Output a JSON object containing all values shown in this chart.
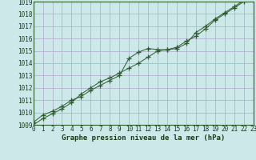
{
  "title": "Graphe pression niveau de la mer (hPa)",
  "bg_color": "#cce8e8",
  "plot_bg_color": "#cce8e8",
  "grid_color": "#b0a8c8",
  "line_color": "#2d5a2d",
  "marker_color": "#2d5a2d",
  "x_values": [
    0,
    1,
    2,
    3,
    4,
    5,
    6,
    7,
    8,
    9,
    10,
    11,
    12,
    13,
    14,
    15,
    16,
    17,
    18,
    19,
    20,
    21,
    22,
    23
  ],
  "y_values1": [
    1009.2,
    1009.8,
    1010.1,
    1010.5,
    1011.0,
    1011.3,
    1011.8,
    1012.2,
    1012.6,
    1013.0,
    1014.4,
    1014.9,
    1015.2,
    1015.1,
    1015.1,
    1015.3,
    1015.8,
    1016.2,
    1016.8,
    1017.5,
    1018.0,
    1018.5,
    1019.0,
    1019.3
  ],
  "y_values2": [
    1009.0,
    1009.5,
    1009.9,
    1010.3,
    1010.8,
    1011.5,
    1012.0,
    1012.5,
    1012.8,
    1013.2,
    1013.6,
    1014.0,
    1014.5,
    1015.0,
    1015.1,
    1015.2,
    1015.6,
    1016.5,
    1017.0,
    1017.6,
    1018.1,
    1018.6,
    1019.1,
    1019.4
  ],
  "ylim": [
    1009,
    1019
  ],
  "xlim": [
    0,
    23
  ],
  "yticks": [
    1009,
    1010,
    1011,
    1012,
    1013,
    1014,
    1015,
    1016,
    1017,
    1018,
    1019
  ],
  "xticks": [
    0,
    1,
    2,
    3,
    4,
    5,
    6,
    7,
    8,
    9,
    10,
    11,
    12,
    13,
    14,
    15,
    16,
    17,
    18,
    19,
    20,
    21,
    22,
    23
  ],
  "title_fontsize": 6.5,
  "tick_fontsize": 5.5,
  "title_color": "#1a3a1a",
  "tick_color": "#1a3a1a",
  "spine_color": "#2d5a2d"
}
